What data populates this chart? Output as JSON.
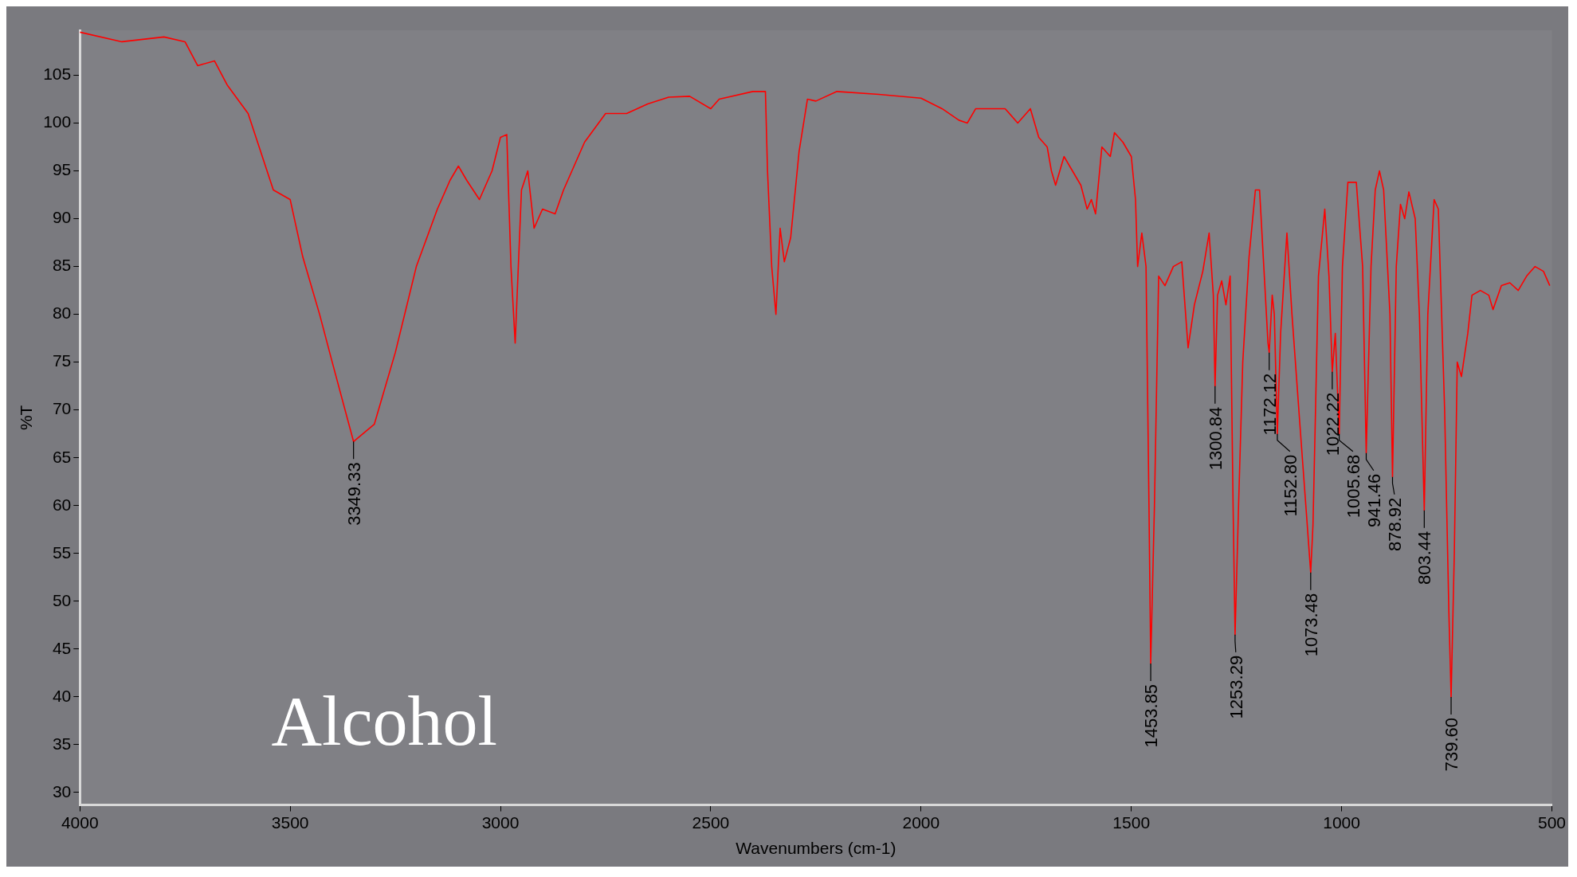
{
  "chart_data": {
    "type": "line",
    "xlabel": "Wavenumbers (cm-1)",
    "ylabel": "%T",
    "xlim": [
      4000,
      500
    ],
    "xticks": [
      4000,
      3500,
      3000,
      2500,
      2000,
      1500,
      1000,
      500
    ],
    "ylim": [
      28.7,
      109.7
    ],
    "yticks": [
      30,
      35,
      40,
      45,
      50,
      55,
      60,
      65,
      70,
      75,
      80,
      85,
      90,
      95,
      100,
      105
    ],
    "grid": false,
    "legend": false,
    "marker": "none",
    "line_style": "solid",
    "series": [
      {
        "color": "#ff0000",
        "x": [
          4000,
          3900,
          3800,
          3750,
          3720,
          3680,
          3650,
          3600,
          3570,
          3540,
          3500,
          3470,
          3430,
          3400,
          3349.33,
          3300,
          3250,
          3200,
          3150,
          3120,
          3100,
          3080,
          3050,
          3020,
          3000,
          2985,
          2975,
          2965,
          2950,
          2935,
          2920,
          2900,
          2870,
          2850,
          2800,
          2750,
          2700,
          2650,
          2600,
          2550,
          2500,
          2480,
          2400,
          2370,
          2365,
          2355,
          2345,
          2335,
          2325,
          2310,
          2290,
          2270,
          2250,
          2200,
          2100,
          2000,
          1950,
          1910,
          1890,
          1870,
          1800,
          1770,
          1740,
          1720,
          1700,
          1690,
          1680,
          1660,
          1640,
          1620,
          1605,
          1595,
          1585,
          1570,
          1550,
          1540,
          1520,
          1500,
          1490,
          1485,
          1475,
          1465,
          1458,
          1453.85,
          1445,
          1435,
          1420,
          1400,
          1380,
          1365,
          1350,
          1330,
          1315,
          1305,
          1300.84,
          1295,
          1285,
          1275,
          1265,
          1258,
          1253.29,
          1245,
          1235,
          1220,
          1205,
          1195,
          1185,
          1175,
          1172.12,
          1165,
          1160,
          1152.8,
          1145,
          1130,
          1118,
          1100,
          1085,
          1073.48,
          1068,
          1055,
          1040,
          1030,
          1022.22,
          1015,
          1005.68,
          998,
          985,
          965,
          950,
          941.46,
          930,
          920,
          910,
          900,
          885,
          878.92,
          870,
          860,
          850,
          840,
          825,
          815,
          803.44,
          795,
          780,
          770,
          755,
          745,
          739.6,
          732,
          725,
          715,
          700,
          690,
          670,
          650,
          640,
          620,
          600,
          580,
          560,
          540,
          520,
          505
        ],
        "values": [
          109.5,
          108.5,
          109,
          108.5,
          106,
          106.5,
          104,
          101,
          97,
          93,
          92,
          86,
          80,
          75,
          66.7,
          68.5,
          76,
          85,
          91,
          94,
          95.5,
          94,
          92,
          95,
          98.5,
          98.8,
          85,
          77,
          93,
          95,
          89,
          91,
          90.5,
          93,
          98,
          101,
          101,
          102,
          102.7,
          102.8,
          101.5,
          102.5,
          103.3,
          103.3,
          95,
          85,
          80,
          89,
          85.5,
          88,
          97,
          102.5,
          102.3,
          103.3,
          103,
          102.6,
          101.5,
          100.3,
          100,
          101.5,
          101.5,
          100,
          101.5,
          98.5,
          97.5,
          95,
          93.5,
          96.5,
          95,
          93.5,
          91,
          92,
          90.5,
          97.5,
          96.5,
          99,
          98,
          96.5,
          92,
          85,
          88.5,
          85,
          60,
          43.5,
          60,
          84,
          83,
          85,
          85.5,
          76.5,
          81,
          84.5,
          88.5,
          82,
          72.5,
          82,
          83.5,
          81,
          84,
          60,
          46.5,
          60,
          75,
          86,
          93,
          93,
          85,
          77,
          76,
          82,
          80,
          67.5,
          78,
          88.5,
          80,
          69,
          60,
          53,
          58,
          84,
          91,
          84,
          74,
          78,
          67.5,
          85,
          93.8,
          93.8,
          85,
          65.5,
          85,
          93,
          95,
          93,
          80,
          63,
          85,
          91.5,
          90,
          92.8,
          90,
          80,
          59.5,
          80,
          92,
          91,
          70,
          49,
          40,
          55,
          75,
          73.5,
          78,
          82,
          82.5,
          82,
          80.5,
          83,
          83.3,
          82.5,
          84,
          85,
          84.5,
          83
        ]
      }
    ],
    "annotations": [
      "Alcohol",
      {
        "text": "3349.33",
        "x": 3349.33,
        "y": 66.7
      },
      {
        "text": "1453.85",
        "x": 1453.85,
        "y": 43.5
      },
      {
        "text": "1300.84",
        "x": 1300.84,
        "y": 72.5
      },
      {
        "text": "1253.29",
        "x": 1253.29,
        "y": 46.5
      },
      {
        "text": "1172.12",
        "x": 1172.12,
        "y": 76
      },
      {
        "text": "1152.80",
        "x": 1152.8,
        "y": 67.5
      },
      {
        "text": "1073.48",
        "x": 1073.48,
        "y": 53
      },
      {
        "text": "1022.22",
        "x": 1022.22,
        "y": 74
      },
      {
        "text": "1005.68",
        "x": 1005.68,
        "y": 67.5
      },
      {
        "text": "941.46",
        "x": 941.46,
        "y": 65.5
      },
      {
        "text": "878.92",
        "x": 878.92,
        "y": 63
      },
      {
        "text": "803.44",
        "x": 803.44,
        "y": 59.5
      },
      {
        "text": "739.60",
        "x": 739.6,
        "y": 40
      }
    ]
  }
}
